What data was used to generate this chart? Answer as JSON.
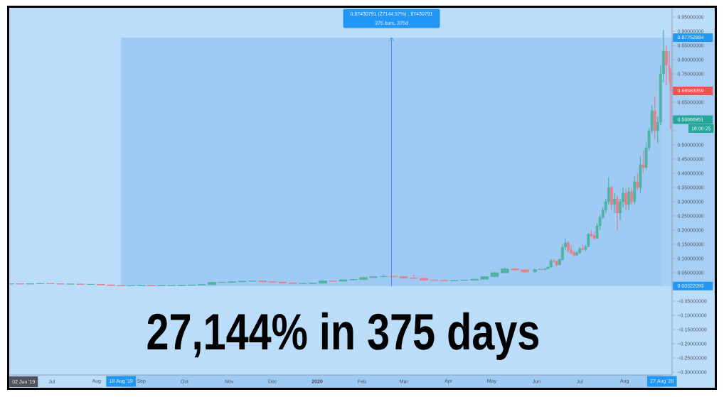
{
  "chart_data": {
    "type": "candlestick",
    "title": "27,144% in 375 days",
    "annotations": [
      "0.87430791 (27144.57%) , 87430791",
      "375 bars, 375d",
      "18:00:25",
      "02 Jun '19"
    ],
    "x": [
      "2019-06-02",
      "2019-06-09",
      "2019-06-16",
      "2019-06-23",
      "2019-06-30",
      "2019-07-07",
      "2019-07-14",
      "2019-07-21",
      "2019-07-28",
      "2019-08-04",
      "2019-08-11",
      "2019-08-18",
      "2019-08-25",
      "2019-09-01",
      "2019-09-08",
      "2019-09-15",
      "2019-09-22",
      "2019-09-29",
      "2019-10-06",
      "2019-10-13",
      "2019-10-20",
      "2019-10-27",
      "2019-11-03",
      "2019-11-10",
      "2019-11-17",
      "2019-11-24",
      "2019-12-01",
      "2019-12-08",
      "2019-12-15",
      "2019-12-22",
      "2019-12-29",
      "2020-01-05",
      "2020-01-12",
      "2020-01-19",
      "2020-01-26",
      "2020-02-02",
      "2020-02-09",
      "2020-02-16",
      "2020-02-23",
      "2020-03-01",
      "2020-03-08",
      "2020-03-15",
      "2020-03-22",
      "2020-03-29",
      "2020-04-05",
      "2020-04-12",
      "2020-04-19",
      "2020-04-26",
      "2020-05-03",
      "2020-05-10",
      "2020-05-17",
      "2020-05-24",
      "2020-05-31",
      "2020-06-03",
      "2020-06-05",
      "2020-06-07",
      "2020-06-09",
      "2020-06-11",
      "2020-06-13",
      "2020-06-15",
      "2020-06-17",
      "2020-06-19",
      "2020-06-21",
      "2020-06-23",
      "2020-06-25",
      "2020-06-27",
      "2020-06-29",
      "2020-07-01",
      "2020-07-03",
      "2020-07-05",
      "2020-07-07",
      "2020-07-09",
      "2020-07-11",
      "2020-07-13",
      "2020-07-15",
      "2020-07-17",
      "2020-07-19",
      "2020-07-21",
      "2020-07-23",
      "2020-07-25",
      "2020-07-27",
      "2020-07-29",
      "2020-07-31",
      "2020-08-02",
      "2020-08-04",
      "2020-08-06",
      "2020-08-08",
      "2020-08-10",
      "2020-08-12",
      "2020-08-14",
      "2020-08-16",
      "2020-08-18",
      "2020-08-20",
      "2020-08-22",
      "2020-08-24",
      "2020-08-26",
      "2020-08-28",
      "2020-08-30",
      "2020-09-01",
      "2020-09-02"
    ],
    "ohlc": [
      [
        0.01,
        0.012,
        0.009,
        0.011
      ],
      [
        0.011,
        0.012,
        0.01,
        0.01
      ],
      [
        0.01,
        0.012,
        0.01,
        0.011
      ],
      [
        0.011,
        0.013,
        0.011,
        0.012
      ],
      [
        0.012,
        0.013,
        0.01,
        0.011
      ],
      [
        0.011,
        0.011,
        0.009,
        0.01
      ],
      [
        0.01,
        0.011,
        0.009,
        0.01
      ],
      [
        0.01,
        0.011,
        0.009,
        0.009
      ],
      [
        0.009,
        0.01,
        0.008,
        0.009
      ],
      [
        0.009,
        0.009,
        0.006,
        0.007
      ],
      [
        0.007,
        0.008,
        0.004,
        0.005
      ],
      [
        0.005,
        0.006,
        0.003,
        0.004
      ],
      [
        0.004,
        0.005,
        0.003,
        0.004
      ],
      [
        0.004,
        0.006,
        0.003,
        0.005
      ],
      [
        0.005,
        0.006,
        0.003,
        0.004
      ],
      [
        0.004,
        0.006,
        0.003,
        0.005
      ],
      [
        0.005,
        0.006,
        0.004,
        0.005
      ],
      [
        0.005,
        0.007,
        0.004,
        0.006
      ],
      [
        0.006,
        0.008,
        0.005,
        0.007
      ],
      [
        0.007,
        0.009,
        0.006,
        0.008
      ],
      [
        0.008,
        0.018,
        0.008,
        0.016
      ],
      [
        0.016,
        0.018,
        0.014,
        0.016
      ],
      [
        0.016,
        0.019,
        0.015,
        0.018
      ],
      [
        0.018,
        0.021,
        0.017,
        0.02
      ],
      [
        0.02,
        0.023,
        0.019,
        0.021
      ],
      [
        0.021,
        0.022,
        0.017,
        0.018
      ],
      [
        0.018,
        0.019,
        0.016,
        0.017
      ],
      [
        0.017,
        0.017,
        0.013,
        0.014
      ],
      [
        0.014,
        0.015,
        0.011,
        0.012
      ],
      [
        0.012,
        0.014,
        0.011,
        0.012
      ],
      [
        0.012,
        0.014,
        0.011,
        0.013
      ],
      [
        0.013,
        0.023,
        0.013,
        0.021
      ],
      [
        0.021,
        0.022,
        0.018,
        0.02
      ],
      [
        0.02,
        0.026,
        0.02,
        0.025
      ],
      [
        0.025,
        0.028,
        0.024,
        0.026
      ],
      [
        0.026,
        0.035,
        0.026,
        0.033
      ],
      [
        0.033,
        0.038,
        0.032,
        0.036
      ],
      [
        0.036,
        0.042,
        0.034,
        0.037
      ],
      [
        0.037,
        0.039,
        0.034,
        0.036
      ],
      [
        0.036,
        0.037,
        0.03,
        0.031
      ],
      [
        0.031,
        0.043,
        0.029,
        0.03
      ],
      [
        0.03,
        0.031,
        0.021,
        0.024
      ],
      [
        0.024,
        0.026,
        0.021,
        0.023
      ],
      [
        0.023,
        0.024,
        0.02,
        0.022
      ],
      [
        0.022,
        0.025,
        0.021,
        0.023
      ],
      [
        0.023,
        0.026,
        0.022,
        0.024
      ],
      [
        0.024,
        0.029,
        0.023,
        0.027
      ],
      [
        0.027,
        0.038,
        0.026,
        0.036
      ],
      [
        0.036,
        0.053,
        0.035,
        0.05
      ],
      [
        0.05,
        0.068,
        0.048,
        0.063
      ],
      [
        0.063,
        0.066,
        0.056,
        0.06
      ],
      [
        0.06,
        0.062,
        0.05,
        0.053
      ],
      [
        0.053,
        0.063,
        0.052,
        0.061
      ],
      [
        0.061,
        0.064,
        0.06,
        0.062
      ],
      [
        0.062,
        0.063,
        0.059,
        0.061
      ],
      [
        0.061,
        0.066,
        0.06,
        0.064
      ],
      [
        0.064,
        0.072,
        0.063,
        0.07
      ],
      [
        0.07,
        0.098,
        0.068,
        0.092
      ],
      [
        0.092,
        0.1,
        0.086,
        0.09
      ],
      [
        0.09,
        0.092,
        0.072,
        0.078
      ],
      [
        0.078,
        0.1,
        0.076,
        0.096
      ],
      [
        0.096,
        0.15,
        0.094,
        0.14
      ],
      [
        0.14,
        0.171,
        0.13,
        0.155
      ],
      [
        0.155,
        0.162,
        0.122,
        0.13
      ],
      [
        0.13,
        0.145,
        0.115,
        0.12
      ],
      [
        0.12,
        0.128,
        0.108,
        0.112
      ],
      [
        0.112,
        0.125,
        0.11,
        0.12
      ],
      [
        0.12,
        0.14,
        0.117,
        0.135
      ],
      [
        0.135,
        0.148,
        0.128,
        0.132
      ],
      [
        0.132,
        0.148,
        0.125,
        0.142
      ],
      [
        0.142,
        0.19,
        0.14,
        0.185
      ],
      [
        0.185,
        0.2,
        0.175,
        0.18
      ],
      [
        0.18,
        0.195,
        0.165,
        0.172
      ],
      [
        0.172,
        0.225,
        0.17,
        0.215
      ],
      [
        0.215,
        0.255,
        0.2,
        0.245
      ],
      [
        0.245,
        0.28,
        0.24,
        0.27
      ],
      [
        0.27,
        0.31,
        0.26,
        0.3
      ],
      [
        0.3,
        0.385,
        0.29,
        0.35
      ],
      [
        0.35,
        0.355,
        0.27,
        0.29
      ],
      [
        0.29,
        0.33,
        0.26,
        0.31
      ],
      [
        0.31,
        0.32,
        0.2,
        0.26
      ],
      [
        0.26,
        0.31,
        0.235,
        0.3
      ],
      [
        0.3,
        0.35,
        0.28,
        0.33
      ],
      [
        0.33,
        0.345,
        0.27,
        0.29
      ],
      [
        0.29,
        0.35,
        0.27,
        0.335
      ],
      [
        0.335,
        0.35,
        0.29,
        0.3
      ],
      [
        0.3,
        0.39,
        0.29,
        0.37
      ],
      [
        0.37,
        0.4,
        0.34,
        0.35
      ],
      [
        0.35,
        0.46,
        0.33,
        0.43
      ],
      [
        0.43,
        0.48,
        0.4,
        0.42
      ],
      [
        0.42,
        0.51,
        0.41,
        0.49
      ],
      [
        0.49,
        0.56,
        0.48,
        0.55
      ],
      [
        0.55,
        0.64,
        0.54,
        0.62
      ],
      [
        0.62,
        0.67,
        0.52,
        0.55
      ],
      [
        0.55,
        0.6,
        0.505,
        0.58
      ],
      [
        0.58,
        0.78,
        0.57,
        0.75
      ],
      [
        0.75,
        0.905,
        0.72,
        0.83
      ],
      [
        0.83,
        0.85,
        0.71,
        0.78
      ],
      [
        0.78,
        0.83,
        0.72,
        0.76
      ],
      [
        0.76,
        0.77,
        0.555,
        0.68983359
      ]
    ],
    "colors": [
      "#50b3a5",
      "#e5808b",
      "#50b3a5",
      "#50b3a5",
      "#e5808b",
      "#e5808b",
      "#50b3a5",
      "#e5808b",
      "#50b3a5",
      "#e5808b",
      "#e5808b",
      "#e5808b",
      "#50b3a5",
      "#50b3a5",
      "#e5808b",
      "#50b3a5",
      "#50b3a5",
      "#50b3a5",
      "#50b3a5",
      "#50b3a5",
      "#50b3a5",
      "#50b3a5",
      "#50b3a5",
      "#50b3a5",
      "#50b3a5",
      "#e5808b",
      "#e5808b",
      "#e5808b",
      "#e5808b",
      "#50b3a5",
      "#50b3a5",
      "#50b3a5",
      "#e5808b",
      "#50b3a5",
      "#50b3a5",
      "#50b3a5",
      "#50b3a5",
      "#50b3a5",
      "#e5808b",
      "#e5808b",
      "#e5808b",
      "#e5808b",
      "#e5808b",
      "#e5808b",
      "#50b3a5",
      "#50b3a5",
      "#50b3a5",
      "#50b3a5",
      "#50b3a5",
      "#50b3a5",
      "#e5808b",
      "#e5808b",
      "#50b3a5",
      "#50b3a5",
      "#e5808b",
      "#50b3a5",
      "#50b3a5",
      "#50b3a5",
      "#e5808b",
      "#e5808b",
      "#50b3a5",
      "#50b3a5",
      "#50b3a5",
      "#e5808b",
      "#e5808b",
      "#e5808b",
      "#50b3a5",
      "#50b3a5",
      "#e5808b",
      "#50b3a5",
      "#50b3a5",
      "#e5808b",
      "#e5808b",
      "#50b3a5",
      "#50b3a5",
      "#50b3a5",
      "#50b3a5",
      "#50b3a5",
      "#e5808b",
      "#50b3a5",
      "#e5808b",
      "#50b3a5",
      "#50b3a5",
      "#e5808b",
      "#50b3a5",
      "#e5808b",
      "#50b3a5",
      "#e5808b",
      "#50b3a5",
      "#e5808b",
      "#50b3a5",
      "#50b3a5",
      "#50b3a5",
      "#e5808b",
      "#50b3a5",
      "#50b3a5",
      "#50b3a5",
      "#e5808b",
      "#e5808b",
      "#e5808b"
    ],
    "xlim": [
      "2019-06-02",
      "2020-09-03"
    ],
    "xticks": [
      {
        "value": "2019-07-01",
        "label": "Jul"
      },
      {
        "value": "2019-08-01",
        "label": "Aug"
      },
      {
        "value": "2019-08-18",
        "label": "18 Aug '19"
      },
      {
        "value": "2019-09-01",
        "label": "Sep"
      },
      {
        "value": "2019-10-01",
        "label": "Oct"
      },
      {
        "value": "2019-11-01",
        "label": "Nov"
      },
      {
        "value": "2019-12-01",
        "label": "Dec"
      },
      {
        "value": "2020-01-01",
        "label": "2020"
      },
      {
        "value": "2020-02-01",
        "label": "Feb"
      },
      {
        "value": "2020-03-01",
        "label": "Mar"
      },
      {
        "value": "2020-04-01",
        "label": "Apr"
      },
      {
        "value": "2020-05-01",
        "label": "May"
      },
      {
        "value": "2020-06-01",
        "label": "Jun"
      },
      {
        "value": "2020-07-01",
        "label": "Jul"
      },
      {
        "value": "2020-08-01",
        "label": "Aug"
      },
      {
        "value": "2020-08-27",
        "label": "27 Aug '20"
      }
    ],
    "ylim": [
      -0.31,
      0.98
    ],
    "yticks": [
      {
        "value": -0.3,
        "label": "−0.30000000"
      },
      {
        "value": -0.25,
        "label": "−0.25000000"
      },
      {
        "value": -0.2,
        "label": "−0.20000000"
      },
      {
        "value": -0.15,
        "label": "−0.15000000"
      },
      {
        "value": -0.1,
        "label": "−0.10000000"
      },
      {
        "value": -0.05,
        "label": "−0.05000000"
      },
      {
        "value": 0.00322093,
        "label": "0.00322093"
      },
      {
        "value": 0.05,
        "label": "0.05000000"
      },
      {
        "value": 0.1,
        "label": "0.10000000"
      },
      {
        "value": 0.15,
        "label": "0.15000000"
      },
      {
        "value": 0.2,
        "label": "0.20000000"
      },
      {
        "value": 0.25,
        "label": "0.25000000"
      },
      {
        "value": 0.3,
        "label": "0.30000000"
      },
      {
        "value": 0.35,
        "label": "0.35000000"
      },
      {
        "value": 0.4,
        "label": "0.40000000"
      },
      {
        "value": 0.45,
        "label": "0.45000000"
      },
      {
        "value": 0.5,
        "label": "0.50000000"
      },
      {
        "value": 0.55,
        "label": null
      },
      {
        "value": 0.58866951,
        "label": "0.58866951"
      },
      {
        "value": 0.6,
        "label": null
      },
      {
        "value": 0.65,
        "label": "0.65000000"
      },
      {
        "value": 0.68983359,
        "label": "0.68983359"
      },
      {
        "value": 0.7,
        "label": null
      },
      {
        "value": 0.75,
        "label": "0.75000000"
      },
      {
        "value": 0.8,
        "label": "0.80000000"
      },
      {
        "value": 0.85,
        "label": "0.85000000"
      },
      {
        "value": 0.87752884,
        "label": "0.87752884"
      },
      {
        "value": 0.9,
        "label": "0.90000000"
      },
      {
        "value": 0.95,
        "label": "0.95000000"
      }
    ],
    "bands": [
      {
        "axis": "x",
        "from": "2019-08-18",
        "to": "2020-08-27",
        "color": "#9fcaf3"
      },
      {
        "axis": "y",
        "from": 0.00322093,
        "to": 0.87752884,
        "color": "#a6cff5"
      }
    ]
  }
}
